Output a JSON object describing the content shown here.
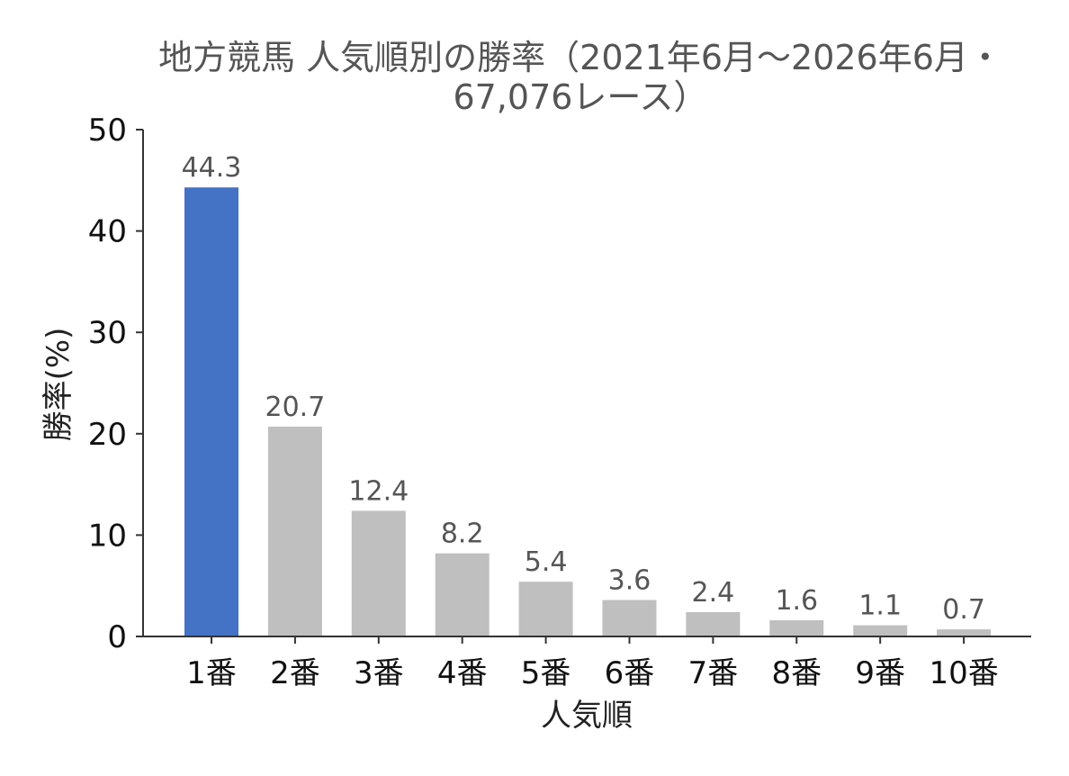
{
  "chart_data": {
    "type": "bar",
    "title": "地方競馬 人気順別の勝率（2021年6月〜2026年6月・67,076レース）",
    "title_lines": [
      "地方競馬 人気順別の勝率（2021年6月〜2026年6月・",
      "67,076レース）"
    ],
    "xlabel": "人気順",
    "ylabel": "勝率(%)",
    "categories": [
      "1番",
      "2番",
      "3番",
      "4番",
      "5番",
      "6番",
      "7番",
      "8番",
      "9番",
      "10番"
    ],
    "values": [
      44.3,
      20.7,
      12.4,
      8.2,
      5.4,
      3.6,
      2.4,
      1.6,
      1.1,
      0.7
    ],
    "data_labels": [
      "44.3",
      "20.7",
      "12.4",
      "8.2",
      "5.4",
      "3.6",
      "2.4",
      "1.6",
      "1.1",
      "0.7"
    ],
    "ylim": [
      0,
      50
    ],
    "yticks": [
      0,
      10,
      20,
      30,
      40,
      50
    ],
    "grid": false,
    "colors": {
      "highlight": "#4472C4",
      "default": "#BFBFBF"
    },
    "highlight_index": 0
  }
}
